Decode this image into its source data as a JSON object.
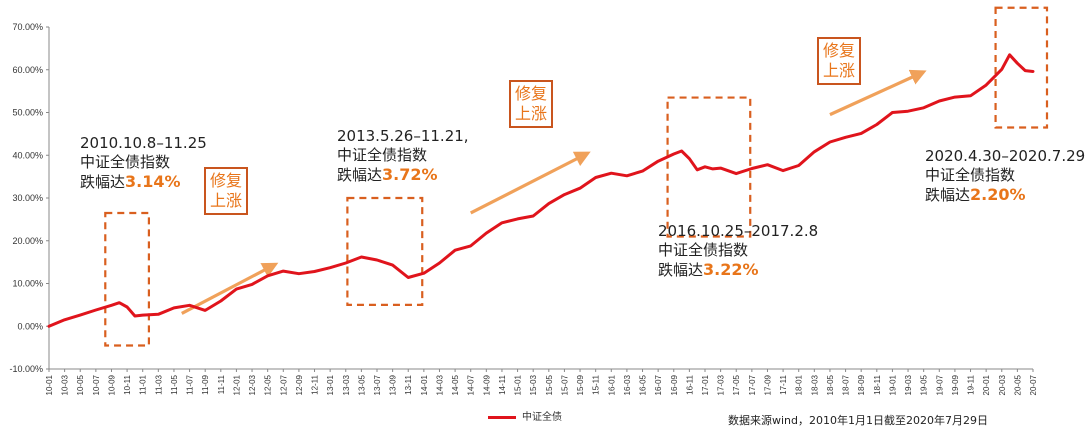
{
  "chart_data": {
    "type": "line",
    "y_unit": "%",
    "ylim": [
      -10,
      70
    ],
    "y_ticks": [
      "70.00%",
      "60.00%",
      "50.00%",
      "40.00%",
      "30.00%",
      "20.00%",
      "10.00%",
      "0.00%",
      "-10.00%"
    ],
    "x_ticks": [
      "10-01",
      "10-03",
      "10-05",
      "10-07",
      "10-09",
      "10-11",
      "11-01",
      "11-03",
      "11-05",
      "11-07",
      "11-09",
      "11-11",
      "12-01",
      "12-03",
      "12-05",
      "12-07",
      "12-09",
      "12-11",
      "13-01",
      "13-03",
      "13-05",
      "13-07",
      "13-09",
      "13-11",
      "14-01",
      "14-03",
      "14-05",
      "14-07",
      "14-09",
      "14-11",
      "15-01",
      "15-03",
      "15-05",
      "15-07",
      "15-09",
      "15-11",
      "16-01",
      "16-03",
      "16-05",
      "16-07",
      "16-09",
      "16-11",
      "17-01",
      "17-03",
      "17-05",
      "17-07",
      "17-09",
      "17-11",
      "18-01",
      "18-03",
      "18-05",
      "18-07",
      "18-09",
      "18-11",
      "19-01",
      "19-03",
      "19-05",
      "19-07",
      "19-09",
      "19-11",
      "20-01",
      "20-03",
      "20-05",
      "20-07"
    ],
    "series": [
      {
        "name": "中证全债",
        "color": "#e0141c",
        "points": [
          [
            "2010-01",
            0.0
          ],
          [
            "2010-03",
            1.5
          ],
          [
            "2010-05",
            2.6
          ],
          [
            "2010-07",
            3.8
          ],
          [
            "2010-09",
            4.9
          ],
          [
            "2010-10",
            5.5
          ],
          [
            "2010-11",
            4.5
          ],
          [
            "2010-12",
            2.4
          ],
          [
            "2011-01",
            2.6
          ],
          [
            "2011-03",
            2.8
          ],
          [
            "2011-05",
            4.3
          ],
          [
            "2011-07",
            4.9
          ],
          [
            "2011-09",
            3.7
          ],
          [
            "2011-11",
            5.9
          ],
          [
            "2012-01",
            8.7
          ],
          [
            "2012-03",
            9.8
          ],
          [
            "2012-05",
            11.8
          ],
          [
            "2012-07",
            12.9
          ],
          [
            "2012-09",
            12.3
          ],
          [
            "2012-11",
            12.8
          ],
          [
            "2013-01",
            13.7
          ],
          [
            "2013-03",
            14.8
          ],
          [
            "2013-05",
            16.2
          ],
          [
            "2013-07",
            15.5
          ],
          [
            "2013-09",
            14.3
          ],
          [
            "2013-11",
            11.4
          ],
          [
            "2014-01",
            12.4
          ],
          [
            "2014-03",
            14.8
          ],
          [
            "2014-05",
            17.8
          ],
          [
            "2014-07",
            18.8
          ],
          [
            "2014-09",
            21.8
          ],
          [
            "2014-11",
            24.2
          ],
          [
            "2015-01",
            25.1
          ],
          [
            "2015-03",
            25.8
          ],
          [
            "2015-05",
            28.7
          ],
          [
            "2015-07",
            30.8
          ],
          [
            "2015-09",
            32.3
          ],
          [
            "2015-11",
            34.8
          ],
          [
            "2016-01",
            35.8
          ],
          [
            "2016-03",
            35.2
          ],
          [
            "2016-05",
            36.3
          ],
          [
            "2016-07",
            38.6
          ],
          [
            "2016-09",
            40.3
          ],
          [
            "2016-10",
            41.0
          ],
          [
            "2016-11",
            39.2
          ],
          [
            "2016-12",
            36.6
          ],
          [
            "2017-01",
            37.3
          ],
          [
            "2017-02",
            36.8
          ],
          [
            "2017-03",
            37.0
          ],
          [
            "2017-05",
            35.7
          ],
          [
            "2017-07",
            36.9
          ],
          [
            "2017-09",
            37.8
          ],
          [
            "2017-11",
            36.4
          ],
          [
            "2018-01",
            37.6
          ],
          [
            "2018-03",
            40.8
          ],
          [
            "2018-05",
            43.1
          ],
          [
            "2018-07",
            44.2
          ],
          [
            "2018-09",
            45.1
          ],
          [
            "2018-11",
            47.2
          ],
          [
            "2019-01",
            50.0
          ],
          [
            "2019-03",
            50.3
          ],
          [
            "2019-05",
            51.1
          ],
          [
            "2019-07",
            52.7
          ],
          [
            "2019-09",
            53.6
          ],
          [
            "2019-11",
            53.9
          ],
          [
            "2020-01",
            56.4
          ],
          [
            "2020-03",
            60.1
          ],
          [
            "2020-04",
            63.5
          ],
          [
            "2020-05",
            61.5
          ],
          [
            "2020-06",
            59.8
          ],
          [
            "2020-07",
            59.6
          ]
        ]
      }
    ],
    "annotations": [
      {
        "period": "2010.10.8–11.25",
        "index": "中证全债指数",
        "drop_label": "跌幅达",
        "drop_value": "3.14%",
        "start": "2010-10",
        "end": "2010-12",
        "ymin": -4.5,
        "ymax": 26.5
      },
      {
        "period": "2013.5.26–11.21,",
        "index": "中证全债指数",
        "drop_label": "跌幅达",
        "drop_value": "3.72%",
        "start": "2013-05",
        "end": "2013-11",
        "ymin": 5,
        "ymax": 30
      },
      {
        "period": "2016.10.25–2017.2.8",
        "index": "中证全债指数",
        "drop_label": "跌幅达",
        "drop_value": "3.22%",
        "start": "2016-10",
        "end": "2017-05",
        "ymin": 21,
        "ymax": 53.5
      },
      {
        "period": "2020.4.30–2020.7.29",
        "index": "中证全债指数",
        "drop_label": "跌幅达",
        "drop_value": "2.20%",
        "start": "2020-04",
        "end": "2020-07",
        "ymin": 46.5,
        "ymax": 74.5
      }
    ],
    "repair_label_line1": "修复",
    "repair_label_line2": "上涨",
    "arrows": [
      {
        "from": [
          "2011-06",
          3
        ],
        "to": [
          "2012-06",
          14.5
        ]
      },
      {
        "from": [
          "2014-07",
          26.5
        ],
        "to": [
          "2015-10",
          40.5
        ]
      },
      {
        "from": [
          "2018-05",
          49.5
        ],
        "to": [
          "2019-05",
          59.5
        ]
      }
    ],
    "legend_position": "bottom-center",
    "grid": false
  },
  "source_text": "数据来源wind，2010年1月1日截至2020年7月29日",
  "colors": {
    "line": "#e0141c",
    "annotation": "#e8751a",
    "box": "#d95f1f",
    "arrow": "#f0a15a"
  }
}
